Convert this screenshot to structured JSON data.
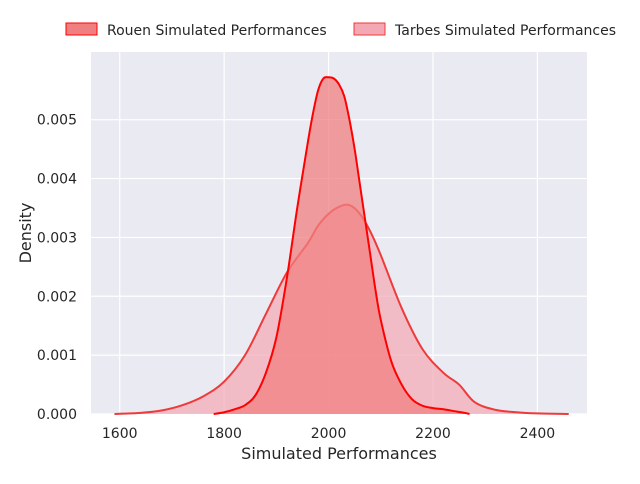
{
  "chart_data": {
    "type": "area",
    "title": "",
    "xlabel": "Simulated Performances",
    "ylabel": "Density",
    "xlim": [
      1545,
      2495
    ],
    "ylim": [
      0,
      0.00615
    ],
    "x_ticks": [
      1600,
      1800,
      2000,
      2200,
      2400
    ],
    "y_ticks": [
      0.0,
      0.001,
      0.002,
      0.003,
      0.004,
      0.005
    ],
    "x_tick_labels": [
      "1600",
      "1800",
      "2000",
      "2200",
      "2400"
    ],
    "y_tick_labels": [
      "0.000",
      "0.001",
      "0.002",
      "0.003",
      "0.004",
      "0.005"
    ],
    "grid": true,
    "legend_position": "top",
    "series": [
      {
        "name": "Rouen Simulated Performances",
        "color": "#ff0000",
        "fill_color": "#f08080",
        "x": [
          1780,
          1800,
          1820,
          1840,
          1860,
          1880,
          1900,
          1920,
          1940,
          1960,
          1970,
          1980,
          1990,
          2000,
          2010,
          2020,
          2030,
          2040,
          2050,
          2060,
          2070,
          2080,
          2090,
          2100,
          2120,
          2140,
          2160,
          2180,
          2200,
          2220,
          2240,
          2260,
          2270
        ],
        "y": [
          0.0,
          3e-05,
          8e-05,
          0.00015,
          0.00032,
          0.0007,
          0.0013,
          0.0023,
          0.0035,
          0.0046,
          0.0051,
          0.0055,
          0.0057,
          0.00572,
          0.0057,
          0.0056,
          0.0054,
          0.005,
          0.0045,
          0.0039,
          0.0033,
          0.0027,
          0.0021,
          0.0016,
          0.0009,
          0.0005,
          0.00025,
          0.00014,
          0.0001,
          8e-05,
          5e-05,
          2e-05,
          0.0
        ]
      },
      {
        "name": "Tarbes Simulated Performances",
        "color": "#ee3a3a",
        "fill_color": "#f4a8b4",
        "x": [
          1590,
          1640,
          1680,
          1720,
          1760,
          1800,
          1840,
          1880,
          1920,
          1960,
          1980,
          2000,
          2020,
          2040,
          2060,
          2080,
          2100,
          2140,
          2180,
          2220,
          2250,
          2280,
          2320,
          2360,
          2400,
          2460
        ],
        "y": [
          0.0,
          2e-05,
          6e-05,
          0.00015,
          0.0003,
          0.00055,
          0.001,
          0.0017,
          0.0024,
          0.0029,
          0.0032,
          0.0034,
          0.00352,
          0.00355,
          0.0034,
          0.0031,
          0.0027,
          0.0018,
          0.0011,
          0.0007,
          0.0005,
          0.0002,
          7e-05,
          3e-05,
          1e-05,
          0.0
        ]
      }
    ]
  }
}
